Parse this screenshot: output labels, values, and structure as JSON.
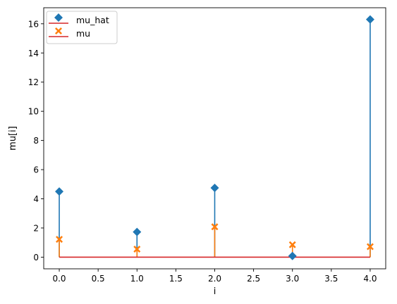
{
  "chart_data": {
    "type": "stem",
    "xlabel": "i",
    "ylabel": "mu[i]",
    "xlim": [
      -0.2,
      4.2
    ],
    "ylim": [
      -0.8,
      17.1
    ],
    "xticks": [
      "0.0",
      "0.5",
      "1.0",
      "1.5",
      "2.0",
      "2.5",
      "3.0",
      "3.5",
      "4.0"
    ],
    "xtick_values": [
      0,
      0.5,
      1,
      1.5,
      2,
      2.5,
      3,
      3.5,
      4
    ],
    "yticks": [
      "0",
      "2",
      "4",
      "6",
      "8",
      "10",
      "12",
      "14",
      "16"
    ],
    "ytick_values": [
      0,
      2,
      4,
      6,
      8,
      10,
      12,
      14,
      16
    ],
    "grid": false,
    "legend_position": "top-left",
    "baseline": 0,
    "baseline_color": "#d62728",
    "x": [
      0,
      1,
      2,
      3,
      4
    ],
    "series": [
      {
        "name": "mu_hat",
        "marker": "diamond",
        "color": "#1f77b4",
        "values": [
          4.5,
          1.73,
          4.75,
          0.08,
          16.3
        ]
      },
      {
        "name": "mu",
        "marker": "x-filled",
        "color": "#ff7f0e",
        "values": [
          1.22,
          0.55,
          2.08,
          0.85,
          0.72
        ]
      }
    ]
  }
}
